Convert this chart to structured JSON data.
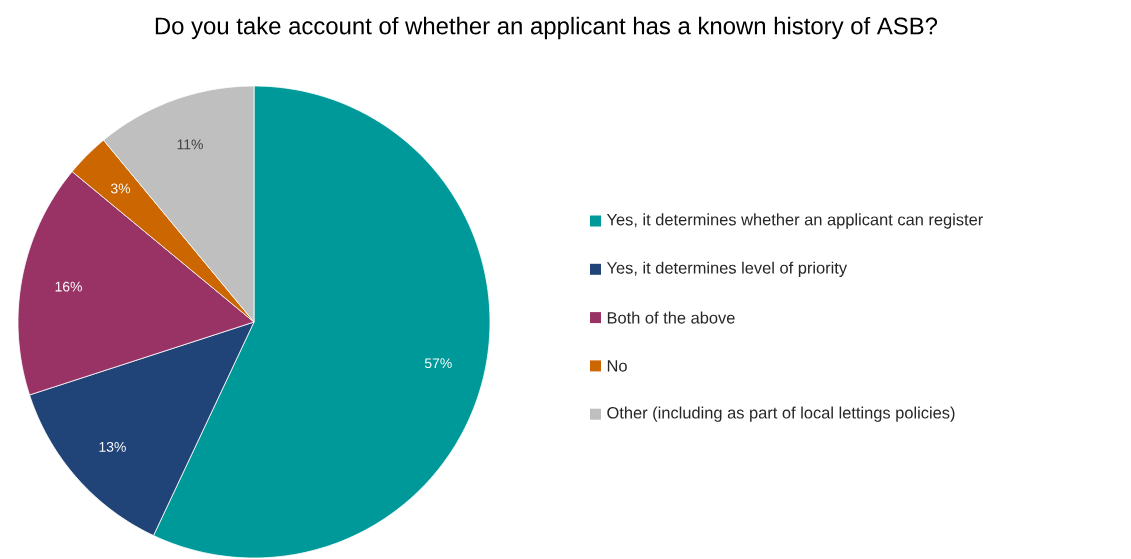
{
  "chart_data": {
    "type": "pie",
    "title": "Do you take account of whether an applicant has a known history of ASB?",
    "categories": [
      "Yes, it determines whether an applicant can register",
      "Yes, it determines level of priority",
      "Both of the above",
      "No",
      "Other (including as part of local lettings policies)"
    ],
    "values": [
      57,
      13,
      16,
      3,
      11
    ],
    "value_labels": [
      "57%",
      "13%",
      "16%",
      "3%",
      "11%"
    ],
    "colors": [
      "#009999",
      "#214478",
      "#993366",
      "#cc6600",
      "#bfbfbf"
    ],
    "legend": "right"
  }
}
